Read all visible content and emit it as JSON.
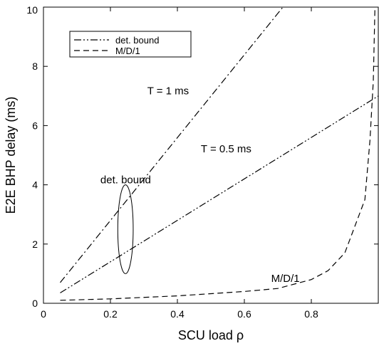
{
  "chart_data": {
    "type": "line",
    "xlabel": "SCU load ρ",
    "ylabel": "E2E BHP delay (ms)",
    "xlim": [
      0,
      1.0
    ],
    "ylim": [
      0,
      10
    ],
    "xticks": [
      0,
      0.2,
      0.4,
      0.6,
      0.8
    ],
    "xtick_labels": [
      "0",
      "0.2",
      "0.4",
      "0.6",
      "0.8"
    ],
    "yticks": [
      0,
      2,
      4,
      6,
      8,
      10
    ],
    "ytick_labels": [
      "0",
      "2",
      "4",
      "6",
      "8",
      "10"
    ],
    "grid": false,
    "legend_position": "top-left",
    "legend": [
      {
        "label": "det. bound",
        "style": "dash-dot-dot"
      },
      {
        "label": "M/D/1",
        "style": "dashed"
      }
    ],
    "series": [
      {
        "style": "dash-dot",
        "points": [
          [
            0.05,
            0.7
          ],
          [
            0.715,
            10.0
          ]
        ]
      },
      {
        "style": "dash-dot-dot",
        "points": [
          [
            0.05,
            0.35
          ],
          [
            1.0,
            7.0
          ]
        ]
      },
      {
        "style": "dashed",
        "points": [
          [
            0.05,
            0.1
          ],
          [
            0.2,
            0.15
          ],
          [
            0.4,
            0.25
          ],
          [
            0.6,
            0.4
          ],
          [
            0.7,
            0.5
          ],
          [
            0.8,
            0.8
          ],
          [
            0.85,
            1.1
          ],
          [
            0.9,
            1.7
          ],
          [
            0.93,
            2.6
          ],
          [
            0.96,
            3.5
          ],
          [
            0.975,
            5.5
          ],
          [
            0.985,
            7.5
          ],
          [
            0.99,
            10.0
          ]
        ]
      }
    ],
    "annotations": [
      {
        "text": "T = 1 ms",
        "x": 0.31,
        "y": 7.05
      },
      {
        "text": "T = 0.5 ms",
        "x": 0.47,
        "y": 5.1
      },
      {
        "text": "det. bound",
        "x": 0.17,
        "y": 4.05
      },
      {
        "text": "M/D/1",
        "x": 0.68,
        "y": 0.72
      }
    ],
    "ellipse": {
      "cx": 0.245,
      "cy": 2.5,
      "rx": 0.023,
      "ry": 1.5
    }
  }
}
